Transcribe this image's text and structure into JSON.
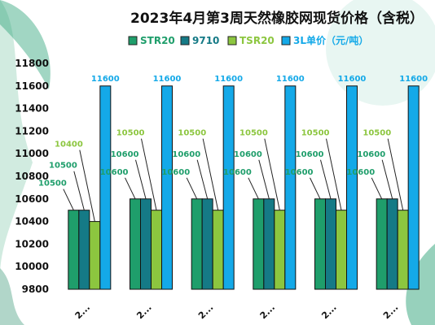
{
  "chart_data": {
    "type": "bar",
    "title": "2023年4月第3周天然橡胶网现货价格（含税）",
    "categories": [
      "2...",
      "2...",
      "2...",
      "2...",
      "2...",
      "2..."
    ],
    "series": [
      {
        "name": "STR20",
        "color": "#1f9e6b",
        "values": [
          10500,
          10600,
          10600,
          10600,
          10600,
          10600
        ]
      },
      {
        "name": "9710",
        "color": "#157a86",
        "values": [
          10500,
          10600,
          10600,
          10600,
          10600,
          10600
        ]
      },
      {
        "name": "TSR20",
        "color": "#8cc63f",
        "values": [
          10400,
          10500,
          10500,
          10500,
          10500,
          10500
        ]
      },
      {
        "name": "3L单价（元/吨）",
        "color": "#14a9e8",
        "values": [
          11600,
          11600,
          11600,
          11600,
          11600,
          11600
        ]
      }
    ],
    "ylim": [
      9800,
      11800
    ],
    "yticks": [
      9800,
      10000,
      10200,
      10400,
      10600,
      10800,
      11000,
      11200,
      11400,
      11600,
      11800
    ],
    "legend": "top",
    "grid": false,
    "label_colors": [
      "#1f9e6b",
      "#1f9e6b",
      "#8cc63f",
      "#14a9e8"
    ]
  }
}
